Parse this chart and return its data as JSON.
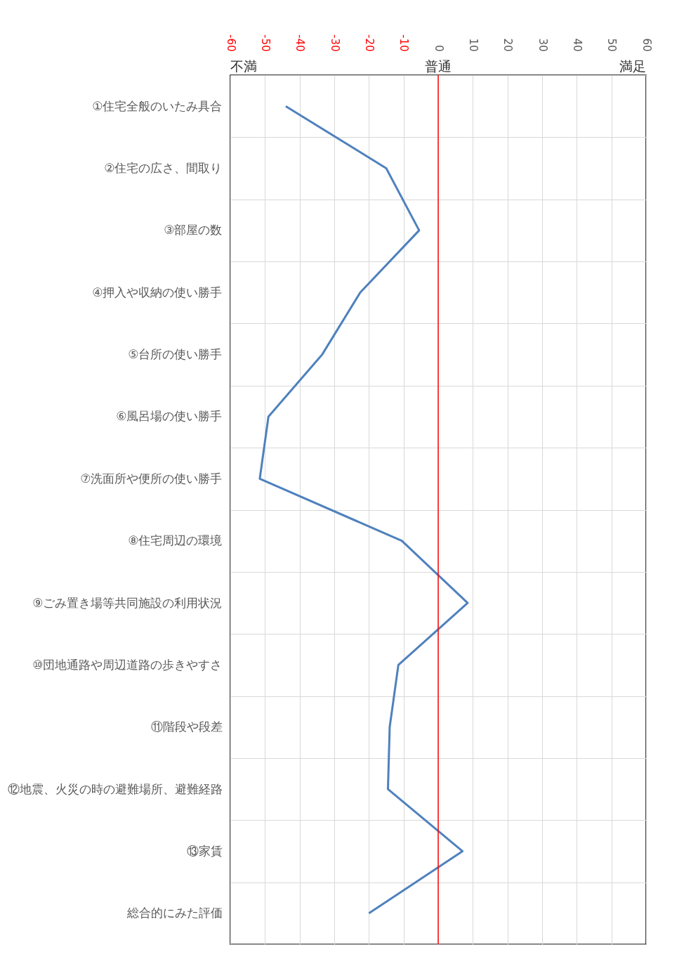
{
  "chart_data": {
    "type": "line",
    "orientation": "horizontal",
    "categories": [
      "①住宅全般のいたみ具合",
      "②住宅の広さ、間取り",
      "③部屋の数",
      "④押入や収納の使い勝手",
      "⑤台所の使い勝手",
      "⑥風呂場の使い勝手",
      "⑦洗面所や便所の使い勝手",
      "⑧住宅周辺の環境",
      "⑨ごみ置き場等共同施設の利用状況",
      "⑩団地通路や周辺道路の歩きやすさ",
      "⑪階段や段差",
      "⑫地震、火災の時の避難場所、避難経路",
      "⑬家賃",
      "総合的にみた評価"
    ],
    "series": [
      {
        "color": "#4f81bd",
        "values": [
          -44,
          -15,
          -5.5,
          -22.5,
          -33.5,
          -49,
          -51.5,
          -10.5,
          8.5,
          -11.5,
          -14,
          -14.5,
          7,
          -20
        ]
      }
    ],
    "xlim": [
      -60,
      60
    ],
    "xticks": [
      -60,
      -50,
      -40,
      -30,
      -20,
      -10,
      0,
      10,
      20,
      30,
      40,
      50,
      60
    ],
    "annotations": [
      "不満",
      "普通",
      "満足"
    ],
    "ref_lines": [
      {
        "axis": "x",
        "value": 0,
        "color": "#ff0000"
      }
    ],
    "grid": true,
    "marker": "none",
    "line_style": "solid"
  }
}
